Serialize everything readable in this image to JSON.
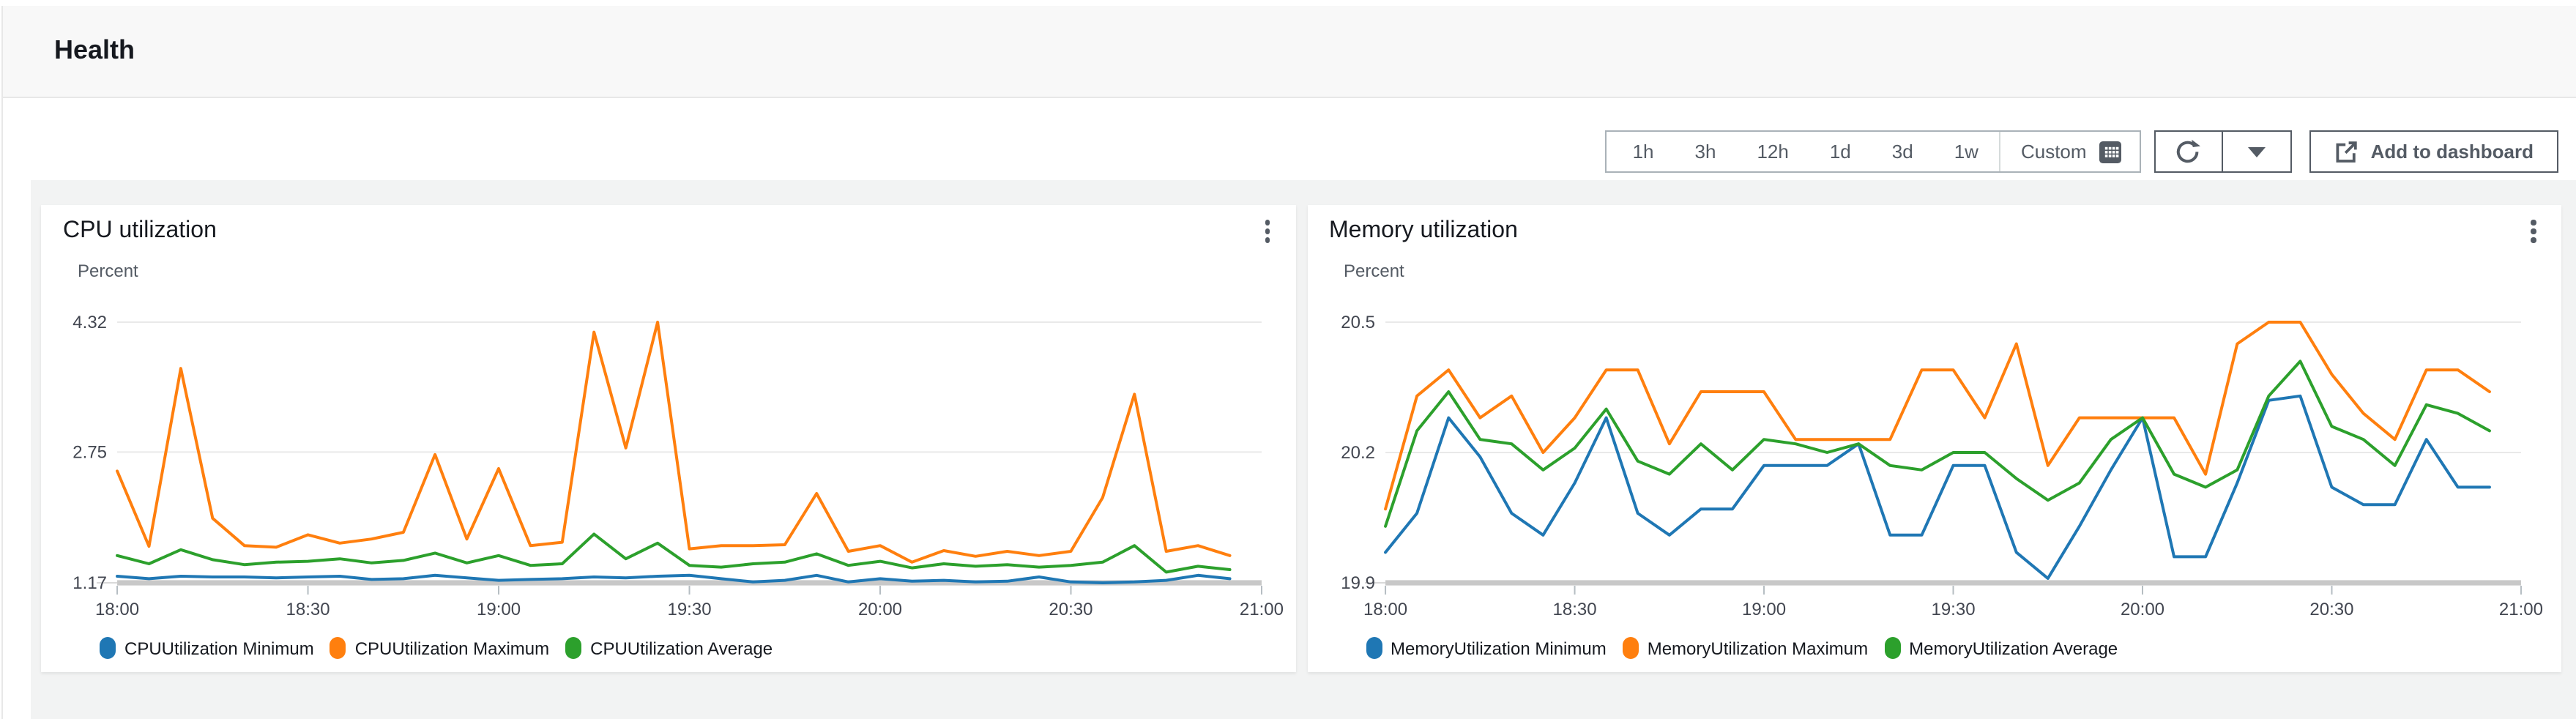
{
  "header": {
    "title": "Health"
  },
  "toolbar": {
    "time_ranges": [
      "1h",
      "3h",
      "12h",
      "1d",
      "3d",
      "1w"
    ],
    "custom_label": "Custom",
    "custom_icon": "calendar-grid-icon",
    "refresh_icon": "refresh-icon",
    "refresh_caret_icon": "caret-down-icon",
    "add_to_dashboard": {
      "label": "Add to dashboard",
      "icon": "external-link-icon"
    }
  },
  "colors": {
    "series_blue": "#1f77b4",
    "series_orange": "#ff7f0e",
    "series_green": "#2ca02c",
    "page_background": "#f2f3f3",
    "header_band": "#f8f8f8",
    "button_text": "#545b64",
    "grid_line": "#e9e9e9",
    "axis_bar": "#c8c8c8",
    "tick_text": "#424650"
  },
  "chart_data": [
    {
      "type": "line",
      "title": "CPU utilization",
      "ylabel": "Percent",
      "menu_icon": "kebab-menu-icon",
      "y_ticks": [
        "4.32",
        "2.75",
        "1.17"
      ],
      "ylim": [
        1.17,
        4.32
      ],
      "x_tick_labels": [
        "18:00",
        "18:30",
        "19:00",
        "19:30",
        "20:00",
        "20:30",
        "21:00"
      ],
      "x_total_minutes": 180,
      "point_interval_minutes": 5,
      "grid": true,
      "legend_position": "bottom",
      "series": [
        {
          "name": "CPUUtilization Minimum",
          "color": "#1f77b4",
          "values": [
            1.25,
            1.22,
            1.25,
            1.24,
            1.24,
            1.23,
            1.24,
            1.25,
            1.21,
            1.22,
            1.26,
            1.23,
            1.2,
            1.21,
            1.22,
            1.24,
            1.23,
            1.25,
            1.26,
            1.22,
            1.18,
            1.2,
            1.26,
            1.18,
            1.22,
            1.19,
            1.2,
            1.18,
            1.19,
            1.24,
            1.18,
            1.17,
            1.18,
            1.2,
            1.26,
            1.22
          ]
        },
        {
          "name": "CPUUtilization Maximum",
          "color": "#ff7f0e",
          "values": [
            2.52,
            1.61,
            3.76,
            1.95,
            1.62,
            1.6,
            1.75,
            1.65,
            1.7,
            1.78,
            2.72,
            1.7,
            2.55,
            1.62,
            1.66,
            4.2,
            2.8,
            4.32,
            1.58,
            1.62,
            1.62,
            1.63,
            2.25,
            1.55,
            1.62,
            1.42,
            1.56,
            1.49,
            1.55,
            1.5,
            1.55,
            2.2,
            3.45,
            1.55,
            1.62,
            1.5
          ]
        },
        {
          "name": "CPUUtilization Average",
          "color": "#2ca02c",
          "values": [
            1.5,
            1.4,
            1.57,
            1.45,
            1.39,
            1.42,
            1.43,
            1.46,
            1.41,
            1.44,
            1.53,
            1.41,
            1.5,
            1.38,
            1.4,
            1.76,
            1.46,
            1.65,
            1.38,
            1.36,
            1.4,
            1.42,
            1.52,
            1.38,
            1.43,
            1.35,
            1.4,
            1.37,
            1.39,
            1.36,
            1.38,
            1.42,
            1.62,
            1.3,
            1.37,
            1.33
          ]
        }
      ]
    },
    {
      "type": "line",
      "title": "Memory utilization",
      "ylabel": "Percent",
      "menu_icon": "kebab-menu-icon",
      "y_ticks": [
        "20.5",
        "20.2",
        "19.9"
      ],
      "ylim": [
        19.9,
        20.5
      ],
      "x_tick_labels": [
        "18:00",
        "18:30",
        "19:00",
        "19:30",
        "20:00",
        "20:30",
        "21:00"
      ],
      "x_total_minutes": 180,
      "point_interval_minutes": 5,
      "grid": true,
      "legend_position": "bottom",
      "series": [
        {
          "name": "MemoryUtilization Minimum",
          "color": "#1f77b4",
          "values": [
            19.97,
            20.06,
            20.28,
            20.19,
            20.06,
            20.01,
            20.13,
            20.28,
            20.06,
            20.01,
            20.07,
            20.07,
            20.17,
            20.17,
            20.17,
            20.22,
            20.01,
            20.01,
            20.17,
            20.17,
            19.97,
            19.91,
            20.03,
            20.16,
            20.28,
            19.96,
            19.96,
            20.13,
            20.32,
            20.33,
            20.12,
            20.08,
            20.08,
            20.23,
            20.12,
            20.12
          ]
        },
        {
          "name": "MemoryUtilization Maximum",
          "color": "#ff7f0e",
          "values": [
            20.07,
            20.33,
            20.39,
            20.28,
            20.33,
            20.2,
            20.28,
            20.39,
            20.39,
            20.22,
            20.34,
            20.34,
            20.34,
            20.23,
            20.23,
            20.23,
            20.23,
            20.39,
            20.39,
            20.28,
            20.45,
            20.17,
            20.28,
            20.28,
            20.28,
            20.28,
            20.15,
            20.45,
            20.5,
            20.5,
            20.38,
            20.29,
            20.23,
            20.39,
            20.39,
            20.34
          ]
        },
        {
          "name": "MemoryUtilization Average",
          "color": "#2ca02c",
          "values": [
            20.03,
            20.25,
            20.34,
            20.23,
            20.22,
            20.16,
            20.21,
            20.3,
            20.18,
            20.15,
            20.22,
            20.16,
            20.23,
            20.22,
            20.2,
            20.22,
            20.17,
            20.16,
            20.2,
            20.2,
            20.14,
            20.09,
            20.13,
            20.23,
            20.28,
            20.15,
            20.12,
            20.16,
            20.33,
            20.41,
            20.26,
            20.23,
            20.17,
            20.31,
            20.29,
            20.25
          ]
        }
      ]
    }
  ]
}
